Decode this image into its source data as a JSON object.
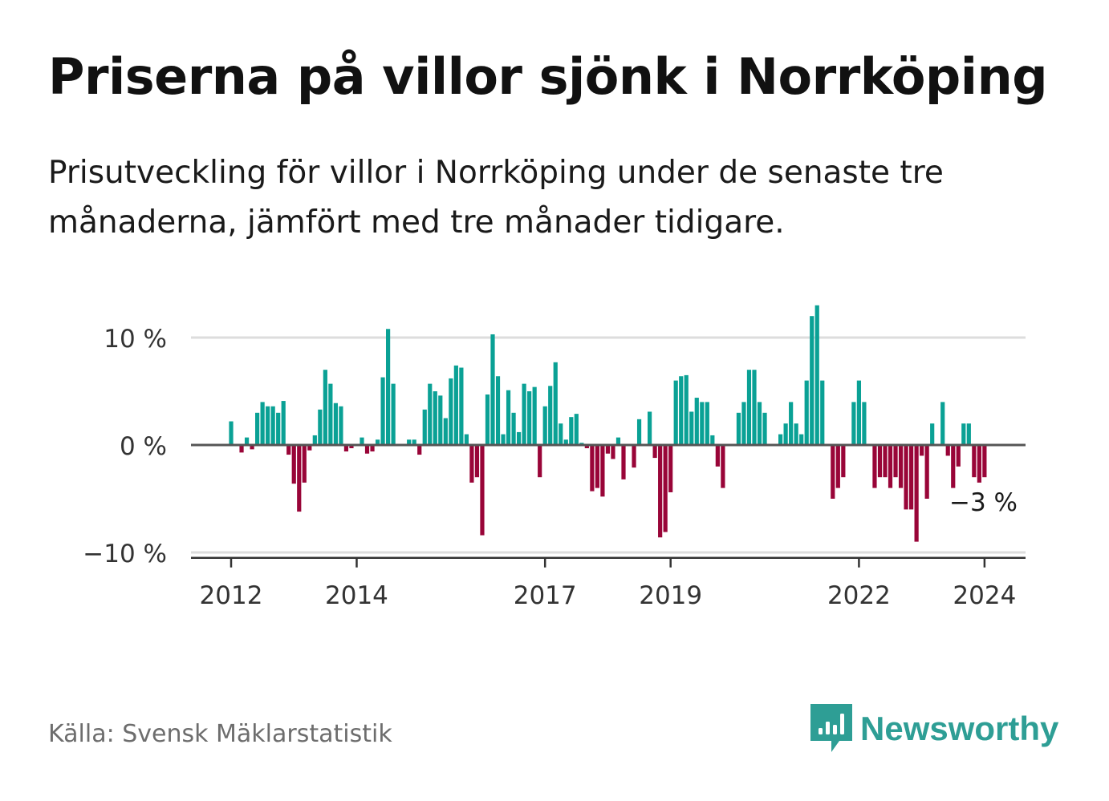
{
  "header": {
    "title": "Priserna på villor sjönk i Norrköping",
    "subtitle": "Prisutveckling för villor i Norrköping under de senaste tre månaderna, jämfört med tre månader tidigare."
  },
  "footer": {
    "source": "Källa: Svensk Mäklarstatistik",
    "brand": "Newsworthy",
    "brand_icon": "bar-chart-speech-bubble-icon"
  },
  "colors": {
    "positive": "#0aa195",
    "negative": "#990538",
    "brand": "#2e9e95",
    "zero_line": "#555555",
    "grid": "#dddddd",
    "axis": "#333333"
  },
  "chart_data": {
    "type": "bar",
    "title": "Priserna på villor sjönk i Norrköping",
    "ylabel": "",
    "xlabel": "",
    "ylim": [
      -10.5,
      13.5
    ],
    "y_ticks": [
      {
        "value": 10,
        "label": "10 %"
      },
      {
        "value": 0,
        "label": "0 %"
      },
      {
        "value": -10,
        "label": "−10 %"
      }
    ],
    "x_ticks": [
      {
        "year": 2012,
        "label": "2012"
      },
      {
        "year": 2014,
        "label": "2014"
      },
      {
        "year": 2017,
        "label": "2017"
      },
      {
        "year": 2019,
        "label": "2019"
      },
      {
        "year": 2022,
        "label": "2022"
      },
      {
        "year": 2024,
        "label": "2024"
      }
    ],
    "start": {
      "year": 2012,
      "month": 1
    },
    "series": [
      {
        "name": "Prisutveckling",
        "unit": "%",
        "values": [
          2.2,
          0,
          -0.7,
          0.7,
          -0.4,
          3.0,
          4.0,
          3.6,
          3.6,
          3.0,
          4.1,
          -0.9,
          -3.6,
          -6.2,
          -3.5,
          -0.5,
          0.9,
          3.3,
          7.0,
          5.7,
          3.9,
          3.6,
          -0.6,
          -0.3,
          0,
          0.7,
          -0.8,
          -0.6,
          0.5,
          6.3,
          10.8,
          5.7,
          0.1,
          0,
          0.5,
          0.5,
          -0.9,
          3.3,
          5.7,
          5.0,
          4.6,
          2.5,
          6.2,
          7.4,
          7.2,
          1.0,
          -3.5,
          -3.0,
          -8.4,
          4.7,
          10.3,
          6.4,
          1.0,
          5.1,
          3.0,
          1.2,
          5.7,
          5.0,
          5.4,
          -3.0,
          3.6,
          5.5,
          7.7,
          2.0,
          0.5,
          2.6,
          2.9,
          0.2,
          -0.3,
          -4.3,
          -4.0,
          -4.8,
          -0.8,
          -1.3,
          0.7,
          -3.2,
          0,
          -2.1,
          2.4,
          0,
          3.1,
          -1.2,
          -8.6,
          -8.1,
          -4.4,
          6.0,
          6.4,
          6.5,
          3.1,
          4.4,
          4.0,
          4.0,
          0.9,
          -2.0,
          -4.0,
          0,
          0,
          3.0,
          4.0,
          7.0,
          7.0,
          4.0,
          3.0,
          0,
          0,
          1.0,
          2.0,
          4.0,
          2.0,
          1.0,
          6.0,
          12.0,
          13.0,
          6.0,
          0,
          -5.0,
          -4.0,
          -3.0,
          0,
          4.0,
          6.0,
          4.0,
          0,
          -4.0,
          -3.0,
          -3.0,
          -4.0,
          -3.0,
          -4.0,
          -6.0,
          -6.0,
          -9.0,
          -1.0,
          -5.0,
          2.0,
          0,
          4.0,
          -1.0,
          -4.0,
          -2.0,
          2.0,
          2.0,
          -3.0,
          -3.5,
          -3.0
        ]
      }
    ],
    "last_value_label": "−3 %",
    "annotations": [
      "−3 %"
    ]
  }
}
